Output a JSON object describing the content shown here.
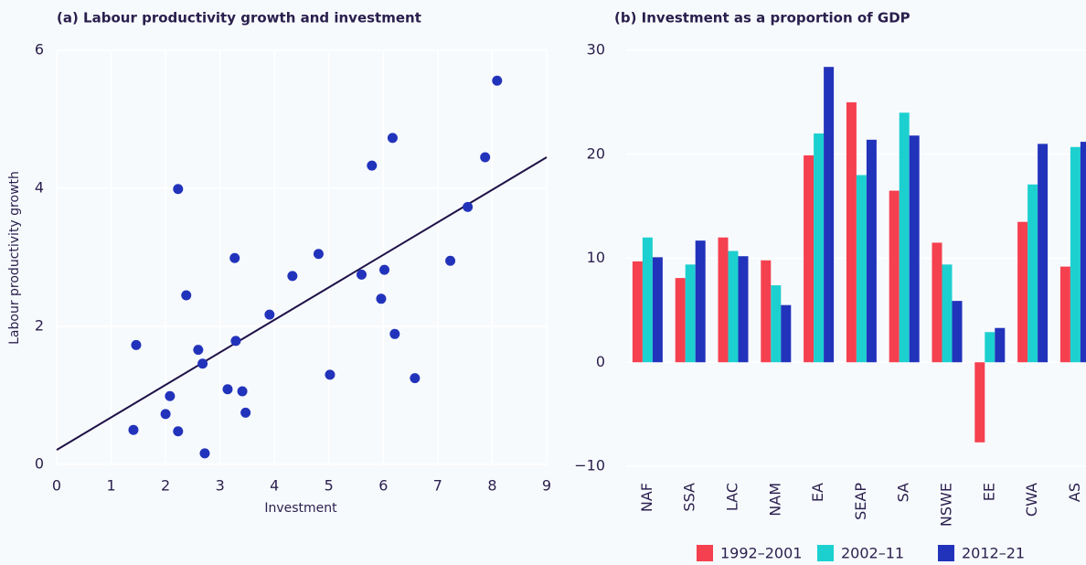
{
  "chart_data": [
    {
      "type": "scatter",
      "title": "(a) Labour productivity growth and investment",
      "xlabel": "Investment",
      "ylabel": "Labour productivity growth",
      "x": [
        1.46,
        1.41,
        2.23,
        2.38,
        2.08,
        2.0,
        2.23,
        2.6,
        2.68,
        2.72,
        3.27,
        3.29,
        3.14,
        3.41,
        3.47,
        3.91,
        4.33,
        4.81,
        5.02,
        5.6,
        5.79,
        6.02,
        5.96,
        6.17,
        6.21,
        6.58,
        7.23,
        7.55,
        7.87,
        8.09
      ],
      "values": [
        1.73,
        0.5,
        3.99,
        2.45,
        0.99,
        0.73,
        0.48,
        1.66,
        1.46,
        0.16,
        2.99,
        1.79,
        1.09,
        1.06,
        0.75,
        2.17,
        2.73,
        3.05,
        1.3,
        2.75,
        4.33,
        2.82,
        2.4,
        4.73,
        1.89,
        1.25,
        2.95,
        3.73,
        4.45,
        5.56
      ],
      "color": "#2233bb",
      "trendline": {
        "x": [
          0,
          9
        ],
        "values": [
          0.21,
          4.45
        ],
        "color": "#1f1248"
      },
      "xlim": [
        0,
        9
      ],
      "xticks": [
        0,
        1,
        2,
        3,
        4,
        5,
        6,
        7,
        8,
        9
      ],
      "ylim": [
        0,
        6
      ],
      "yticks": [
        0,
        2,
        4,
        6
      ],
      "grid": true
    },
    {
      "type": "bar",
      "title": "(b) Investment as a proportion of GDP",
      "categories": [
        "NAF",
        "SSA",
        "LAC",
        "NAM",
        "EA",
        "SEAP",
        "SA",
        "NSWE",
        "EE",
        "CWA",
        "AS"
      ],
      "series": [
        {
          "name": "1992–2001",
          "color": "#f5404f",
          "values": [
            9.7,
            8.1,
            12.0,
            9.8,
            19.9,
            25.0,
            16.5,
            11.5,
            -7.7,
            13.5,
            9.2
          ]
        },
        {
          "name": "2002–11",
          "color": "#1dd0d0",
          "values": [
            12.0,
            9.4,
            10.7,
            7.4,
            22.0,
            18.0,
            24.0,
            9.4,
            2.9,
            17.1,
            20.7
          ]
        },
        {
          "name": "2012–21",
          "color": "#2233bb",
          "values": [
            10.1,
            11.7,
            10.2,
            5.5,
            28.4,
            21.4,
            21.8,
            5.9,
            3.3,
            21.0,
            21.2
          ]
        }
      ],
      "ylim": [
        -10,
        30
      ],
      "yticks": [
        {
          "value": -10,
          "label": "−10"
        },
        0,
        10,
        20,
        30
      ],
      "grid": true,
      "legend": "bottom"
    }
  ]
}
